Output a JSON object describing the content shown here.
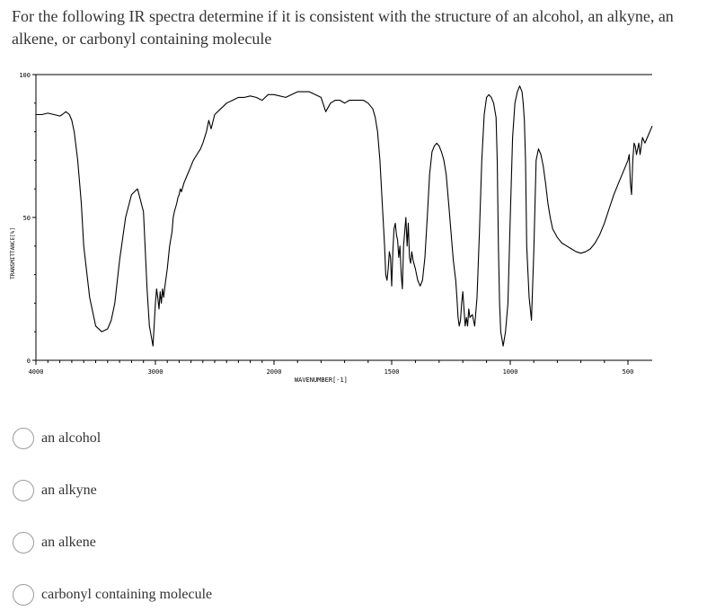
{
  "question": {
    "text": "For the following IR spectra determine if it is consistent with the structure of an alcohol, an alkyne, an alkene, or carbonyl containing molecule"
  },
  "chart_data": {
    "type": "line",
    "title": "",
    "xlabel": "WAVENUMBER[-1]",
    "ylabel": "TRANSMITTANCE[%]",
    "xlim": [
      4000,
      400
    ],
    "ylim": [
      0,
      100
    ],
    "x_ticks": [
      4000,
      3000,
      2000,
      1500,
      1000,
      500
    ],
    "y_ticks": [
      0,
      50,
      100
    ],
    "x_tick_labels": [
      "4000",
      "3000",
      "2000",
      "1500",
      "1000",
      "500"
    ],
    "y_tick_labels": [
      "0",
      "50",
      "100"
    ],
    "grid": false,
    "series": [
      {
        "name": "",
        "color": "#000000",
        "x": [
          4000,
          3950,
          3900,
          3850,
          3800,
          3780,
          3750,
          3720,
          3700,
          3680,
          3650,
          3620,
          3600,
          3550,
          3500,
          3450,
          3400,
          3370,
          3340,
          3300,
          3250,
          3200,
          3150,
          3100,
          3070,
          3050,
          3020,
          3000,
          2990,
          2980,
          2970,
          2960,
          2950,
          2940,
          2930,
          2920,
          2900,
          2880,
          2860,
          2850,
          2840,
          2820,
          2810,
          2800,
          2790,
          2780,
          2760,
          2740,
          2720,
          2700,
          2680,
          2650,
          2620,
          2600,
          2570,
          2550,
          2530,
          2500,
          2450,
          2400,
          2350,
          2300,
          2250,
          2200,
          2150,
          2100,
          2050,
          2000,
          1950,
          1900,
          1850,
          1800,
          1780,
          1760,
          1740,
          1720,
          1700,
          1680,
          1650,
          1620,
          1600,
          1580,
          1570,
          1560,
          1550,
          1540,
          1530,
          1525,
          1520,
          1515,
          1510,
          1505,
          1500,
          1495,
          1490,
          1485,
          1480,
          1475,
          1470,
          1465,
          1460,
          1455,
          1450,
          1445,
          1440,
          1435,
          1430,
          1425,
          1420,
          1415,
          1410,
          1400,
          1390,
          1380,
          1370,
          1360,
          1350,
          1340,
          1330,
          1320,
          1310,
          1300,
          1290,
          1280,
          1270,
          1260,
          1250,
          1240,
          1230,
          1225,
          1220,
          1215,
          1210,
          1205,
          1200,
          1195,
          1190,
          1185,
          1180,
          1175,
          1170,
          1160,
          1150,
          1140,
          1130,
          1120,
          1110,
          1100,
          1090,
          1080,
          1070,
          1060,
          1055,
          1050,
          1045,
          1040,
          1030,
          1020,
          1010,
          1000,
          990,
          980,
          970,
          960,
          950,
          945,
          940,
          935,
          930,
          920,
          910,
          900,
          890,
          880,
          870,
          860,
          850,
          840,
          830,
          820,
          800,
          780,
          760,
          740,
          720,
          700,
          680,
          660,
          640,
          620,
          600,
          580,
          560,
          540,
          520,
          510,
          500,
          495,
          490,
          485,
          480,
          475,
          470,
          465,
          460,
          455,
          450,
          440,
          430,
          420,
          410,
          400
        ],
        "y": [
          86,
          86,
          86.5,
          86,
          85.5,
          86,
          87,
          86,
          84,
          80,
          70,
          55,
          40,
          22,
          12,
          10,
          11,
          14,
          20,
          35,
          50,
          58,
          60,
          52,
          25,
          12,
          5,
          20,
          25,
          22,
          18,
          24,
          20,
          25,
          22,
          26,
          32,
          40,
          45,
          50,
          52,
          55,
          57,
          58,
          60,
          59,
          62,
          64,
          66,
          68,
          70,
          72,
          74,
          76,
          80,
          84,
          81,
          86,
          88,
          90,
          91,
          92,
          92,
          92.5,
          92,
          91,
          93,
          93,
          92,
          94,
          94,
          92,
          87,
          90,
          91,
          91,
          90,
          91,
          91,
          91,
          90,
          88,
          85,
          80,
          70,
          55,
          40,
          30,
          28,
          32,
          38,
          36,
          26,
          38,
          46,
          48,
          44,
          42,
          36,
          40,
          30,
          25,
          40,
          45,
          50,
          40,
          48,
          36,
          34,
          38,
          35,
          32,
          28,
          26,
          28,
          36,
          50,
          65,
          73,
          75,
          76,
          75,
          73,
          70,
          65,
          55,
          45,
          35,
          28,
          22,
          15,
          12,
          14,
          20,
          24,
          18,
          12,
          15,
          12,
          18,
          15,
          16,
          12,
          22,
          45,
          70,
          86,
          92,
          93,
          92,
          90,
          85,
          70,
          40,
          20,
          10,
          5,
          10,
          20,
          50,
          78,
          90,
          94,
          96,
          94,
          90,
          84,
          70,
          40,
          22,
          14,
          38,
          70,
          74,
          72,
          68,
          62,
          55,
          50,
          46,
          43,
          41,
          40,
          39,
          38,
          37.5,
          38,
          39,
          41,
          44,
          48,
          53,
          58,
          62,
          66,
          68,
          70,
          72,
          62,
          58,
          70,
          76,
          75,
          72,
          74,
          76,
          72,
          78,
          76,
          78,
          80,
          82
        ]
      }
    ]
  },
  "options": [
    {
      "label": "an alcohol",
      "selected": false
    },
    {
      "label": "an alkyne",
      "selected": false
    },
    {
      "label": "an alkene",
      "selected": false
    },
    {
      "label": "carbonyl containing molecule",
      "selected": false
    }
  ]
}
